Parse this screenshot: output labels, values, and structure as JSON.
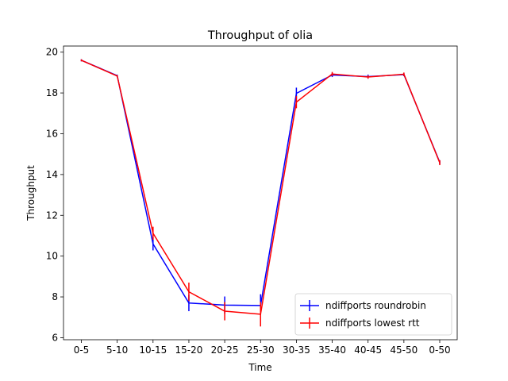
{
  "chart_data": {
    "type": "line",
    "title": "Throughput of olia",
    "xlabel": "Time",
    "ylabel": "Throughput",
    "categories": [
      "0-5",
      "5-10",
      "10-15",
      "15-20",
      "20-25",
      "25-30",
      "30-35",
      "35-40",
      "40-45",
      "45-50",
      "0-50"
    ],
    "ylim": [
      5.9,
      20.3
    ],
    "yticks": [
      6,
      8,
      10,
      12,
      14,
      16,
      18,
      20
    ],
    "grid": false,
    "legend_position": "lower right",
    "series": [
      {
        "name": "ndiffports roundrobin",
        "color": "#0000ff",
        "values": [
          19.6,
          18.85,
          10.6,
          7.7,
          7.6,
          7.58,
          17.98,
          18.88,
          18.8,
          18.9,
          14.6
        ],
        "errors": [
          0.05,
          0.05,
          0.32,
          0.4,
          0.42,
          0.55,
          0.28,
          0.1,
          0.1,
          0.08,
          0.1
        ]
      },
      {
        "name": "ndiffports lowest rtt",
        "color": "#ff0000",
        "values": [
          19.6,
          18.83,
          11.12,
          8.25,
          7.3,
          7.15,
          17.55,
          18.93,
          18.78,
          18.92,
          14.58
        ],
        "errors": [
          0.05,
          0.05,
          0.32,
          0.45,
          0.45,
          0.6,
          0.3,
          0.1,
          0.08,
          0.08,
          0.12
        ]
      }
    ]
  }
}
